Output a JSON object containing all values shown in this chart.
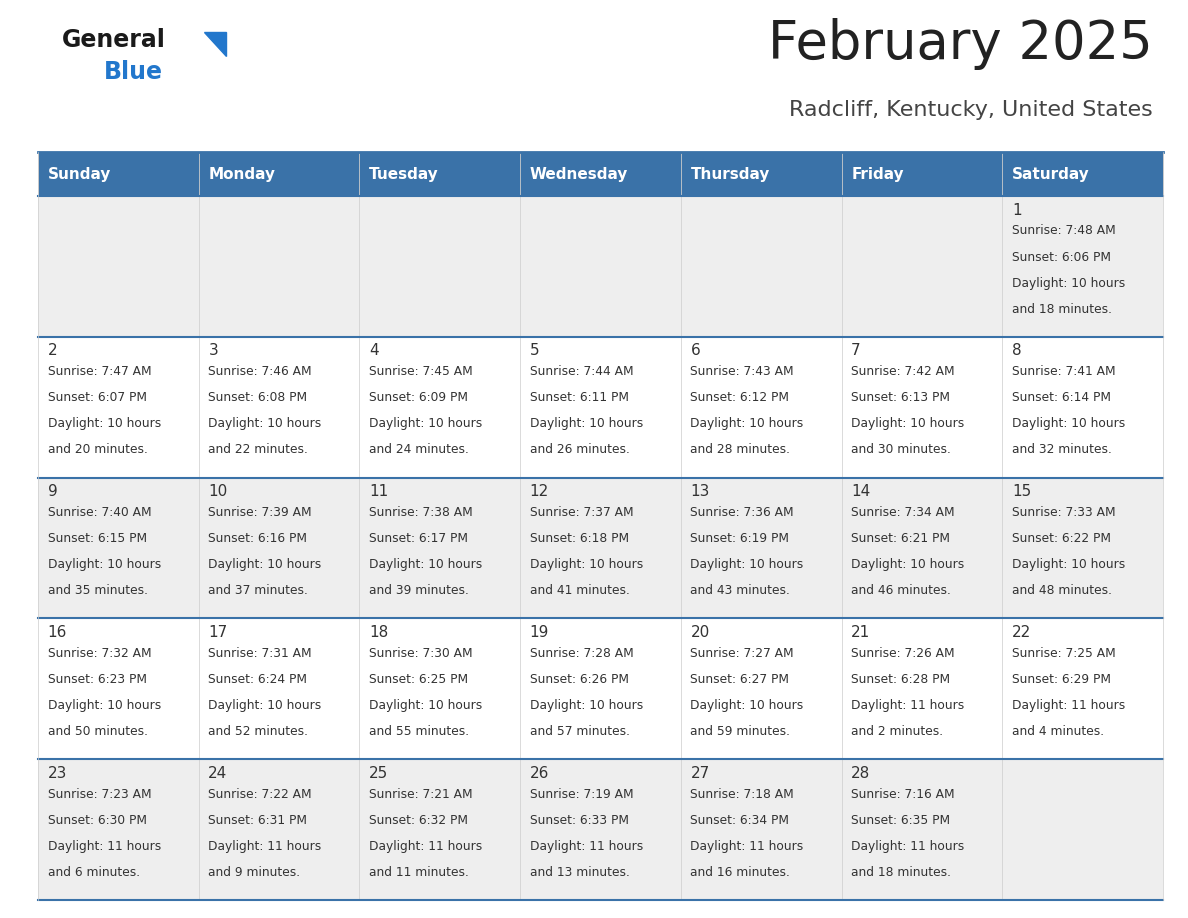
{
  "title": "February 2025",
  "subtitle": "Radcliff, Kentucky, United States",
  "header_color": "#3a72a8",
  "header_text_color": "#ffffff",
  "cell_bg_row0": "#eeeeee",
  "cell_bg_row1": "#ffffff",
  "border_color": "#3a72a8",
  "title_color": "#222222",
  "subtitle_color": "#444444",
  "day_number_color": "#333333",
  "cell_text_color": "#333333",
  "days_of_week": [
    "Sunday",
    "Monday",
    "Tuesday",
    "Wednesday",
    "Thursday",
    "Friday",
    "Saturday"
  ],
  "calendar_data": [
    [
      null,
      null,
      null,
      null,
      null,
      null,
      {
        "day": "1",
        "sunrise": "Sunrise: 7:48 AM",
        "sunset": "Sunset: 6:06 PM",
        "daylight": "Daylight: 10 hours",
        "daylight2": "and 18 minutes."
      }
    ],
    [
      {
        "day": "2",
        "sunrise": "Sunrise: 7:47 AM",
        "sunset": "Sunset: 6:07 PM",
        "daylight": "Daylight: 10 hours",
        "daylight2": "and 20 minutes."
      },
      {
        "day": "3",
        "sunrise": "Sunrise: 7:46 AM",
        "sunset": "Sunset: 6:08 PM",
        "daylight": "Daylight: 10 hours",
        "daylight2": "and 22 minutes."
      },
      {
        "day": "4",
        "sunrise": "Sunrise: 7:45 AM",
        "sunset": "Sunset: 6:09 PM",
        "daylight": "Daylight: 10 hours",
        "daylight2": "and 24 minutes."
      },
      {
        "day": "5",
        "sunrise": "Sunrise: 7:44 AM",
        "sunset": "Sunset: 6:11 PM",
        "daylight": "Daylight: 10 hours",
        "daylight2": "and 26 minutes."
      },
      {
        "day": "6",
        "sunrise": "Sunrise: 7:43 AM",
        "sunset": "Sunset: 6:12 PM",
        "daylight": "Daylight: 10 hours",
        "daylight2": "and 28 minutes."
      },
      {
        "day": "7",
        "sunrise": "Sunrise: 7:42 AM",
        "sunset": "Sunset: 6:13 PM",
        "daylight": "Daylight: 10 hours",
        "daylight2": "and 30 minutes."
      },
      {
        "day": "8",
        "sunrise": "Sunrise: 7:41 AM",
        "sunset": "Sunset: 6:14 PM",
        "daylight": "Daylight: 10 hours",
        "daylight2": "and 32 minutes."
      }
    ],
    [
      {
        "day": "9",
        "sunrise": "Sunrise: 7:40 AM",
        "sunset": "Sunset: 6:15 PM",
        "daylight": "Daylight: 10 hours",
        "daylight2": "and 35 minutes."
      },
      {
        "day": "10",
        "sunrise": "Sunrise: 7:39 AM",
        "sunset": "Sunset: 6:16 PM",
        "daylight": "Daylight: 10 hours",
        "daylight2": "and 37 minutes."
      },
      {
        "day": "11",
        "sunrise": "Sunrise: 7:38 AM",
        "sunset": "Sunset: 6:17 PM",
        "daylight": "Daylight: 10 hours",
        "daylight2": "and 39 minutes."
      },
      {
        "day": "12",
        "sunrise": "Sunrise: 7:37 AM",
        "sunset": "Sunset: 6:18 PM",
        "daylight": "Daylight: 10 hours",
        "daylight2": "and 41 minutes."
      },
      {
        "day": "13",
        "sunrise": "Sunrise: 7:36 AM",
        "sunset": "Sunset: 6:19 PM",
        "daylight": "Daylight: 10 hours",
        "daylight2": "and 43 minutes."
      },
      {
        "day": "14",
        "sunrise": "Sunrise: 7:34 AM",
        "sunset": "Sunset: 6:21 PM",
        "daylight": "Daylight: 10 hours",
        "daylight2": "and 46 minutes."
      },
      {
        "day": "15",
        "sunrise": "Sunrise: 7:33 AM",
        "sunset": "Sunset: 6:22 PM",
        "daylight": "Daylight: 10 hours",
        "daylight2": "and 48 minutes."
      }
    ],
    [
      {
        "day": "16",
        "sunrise": "Sunrise: 7:32 AM",
        "sunset": "Sunset: 6:23 PM",
        "daylight": "Daylight: 10 hours",
        "daylight2": "and 50 minutes."
      },
      {
        "day": "17",
        "sunrise": "Sunrise: 7:31 AM",
        "sunset": "Sunset: 6:24 PM",
        "daylight": "Daylight: 10 hours",
        "daylight2": "and 52 minutes."
      },
      {
        "day": "18",
        "sunrise": "Sunrise: 7:30 AM",
        "sunset": "Sunset: 6:25 PM",
        "daylight": "Daylight: 10 hours",
        "daylight2": "and 55 minutes."
      },
      {
        "day": "19",
        "sunrise": "Sunrise: 7:28 AM",
        "sunset": "Sunset: 6:26 PM",
        "daylight": "Daylight: 10 hours",
        "daylight2": "and 57 minutes."
      },
      {
        "day": "20",
        "sunrise": "Sunrise: 7:27 AM",
        "sunset": "Sunset: 6:27 PM",
        "daylight": "Daylight: 10 hours",
        "daylight2": "and 59 minutes."
      },
      {
        "day": "21",
        "sunrise": "Sunrise: 7:26 AM",
        "sunset": "Sunset: 6:28 PM",
        "daylight": "Daylight: 11 hours",
        "daylight2": "and 2 minutes."
      },
      {
        "day": "22",
        "sunrise": "Sunrise: 7:25 AM",
        "sunset": "Sunset: 6:29 PM",
        "daylight": "Daylight: 11 hours",
        "daylight2": "and 4 minutes."
      }
    ],
    [
      {
        "day": "23",
        "sunrise": "Sunrise: 7:23 AM",
        "sunset": "Sunset: 6:30 PM",
        "daylight": "Daylight: 11 hours",
        "daylight2": "and 6 minutes."
      },
      {
        "day": "24",
        "sunrise": "Sunrise: 7:22 AM",
        "sunset": "Sunset: 6:31 PM",
        "daylight": "Daylight: 11 hours",
        "daylight2": "and 9 minutes."
      },
      {
        "day": "25",
        "sunrise": "Sunrise: 7:21 AM",
        "sunset": "Sunset: 6:32 PM",
        "daylight": "Daylight: 11 hours",
        "daylight2": "and 11 minutes."
      },
      {
        "day": "26",
        "sunrise": "Sunrise: 7:19 AM",
        "sunset": "Sunset: 6:33 PM",
        "daylight": "Daylight: 11 hours",
        "daylight2": "and 13 minutes."
      },
      {
        "day": "27",
        "sunrise": "Sunrise: 7:18 AM",
        "sunset": "Sunset: 6:34 PM",
        "daylight": "Daylight: 11 hours",
        "daylight2": "and 16 minutes."
      },
      {
        "day": "28",
        "sunrise": "Sunrise: 7:16 AM",
        "sunset": "Sunset: 6:35 PM",
        "daylight": "Daylight: 11 hours",
        "daylight2": "and 18 minutes."
      },
      null
    ]
  ]
}
